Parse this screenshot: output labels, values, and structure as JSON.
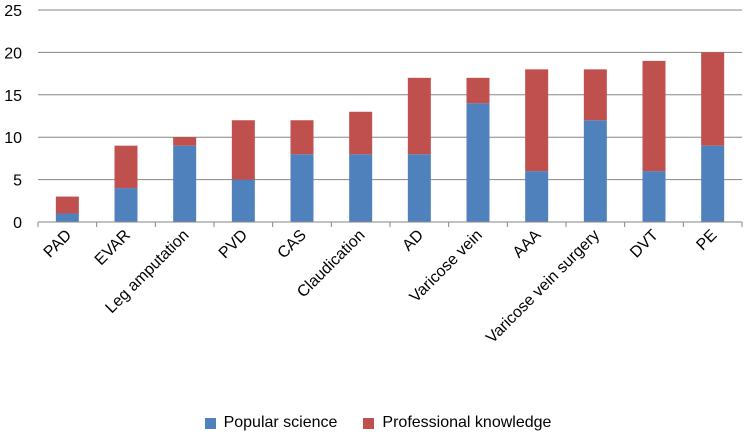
{
  "chart_data": {
    "type": "bar",
    "stacked": true,
    "categories": [
      "PAD",
      "EVAR",
      "Leg amputation",
      "PVD",
      "CAS",
      "Claudication",
      "AD",
      "Varicose vein",
      "AAA",
      "Varicose vein surgery",
      "DVT",
      "PE"
    ],
    "series": [
      {
        "name": "Popular science",
        "color": "#4F81BD",
        "values": [
          1,
          4,
          9,
          5,
          8,
          8,
          8,
          14,
          6,
          12,
          6,
          9
        ]
      },
      {
        "name": "Professional knowledge",
        "color": "#C0504D",
        "values": [
          2,
          5,
          1,
          7,
          4,
          5,
          9,
          3,
          12,
          6,
          13,
          11
        ]
      }
    ],
    "ylim": [
      0,
      25
    ],
    "yticks": [
      0,
      5,
      10,
      15,
      20,
      25
    ],
    "grid": true,
    "legend_position": "bottom"
  }
}
